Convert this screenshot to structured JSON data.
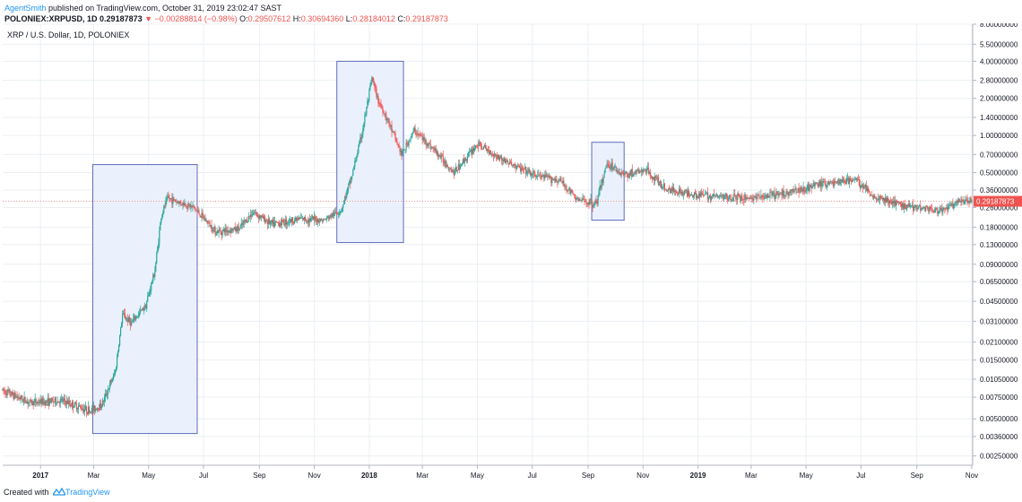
{
  "header": {
    "author": "AgentSmith",
    "published": " published on TradingView.com, October 31, 2019 23:02:47 SAST",
    "symbol": "POLONIEX:XRPUSD, 1D",
    "last": "0.29187873",
    "change": "▼ −0.00288814 (−0.98%)",
    "ohlc": {
      "o_label": "O:",
      "o": "0.29507612",
      "h_label": "H:",
      "h": "0.30694360",
      "l_label": "L:",
      "l": "0.28184012",
      "c_label": "C:",
      "c": "0.29187873"
    }
  },
  "symbol_title": "XRP / U.S. Dollar, 1D, POLONIEX",
  "footer": {
    "created": "Created with",
    "brand": "TradingView"
  },
  "colors": {
    "up": "#26a69a",
    "down": "#ef5350",
    "box_stroke": "#5c6bc0",
    "box_fill": "#e8eefb",
    "grid": "#eceff3"
  },
  "chart_data": {
    "type": "candlestick",
    "y_scale": "log",
    "ylim": [
      0.0021,
      8.0
    ],
    "xlim": [
      "2016-11-20",
      "2019-11-02"
    ],
    "last_price": 0.29187873,
    "y_ticks": [
      "8.00000000",
      "5.50000000",
      "4.00000000",
      "2.80000000",
      "2.00000000",
      "1.40000000",
      "1.00000000",
      "0.70000000",
      "0.50000000",
      "0.36000000",
      "0.26000000",
      "0.18000000",
      "0.13000000",
      "0.09000000",
      "0.06500000",
      "0.04500000",
      "0.03100000",
      "0.02100000",
      "0.01500000",
      "0.01050000",
      "0.00750000",
      "0.00500000",
      "0.00360000",
      "0.00250000"
    ],
    "x_ticks": [
      {
        "label": "2017",
        "date": "2017-01-01",
        "bold": true
      },
      {
        "label": "Mar",
        "date": "2017-03-01"
      },
      {
        "label": "May",
        "date": "2017-05-01"
      },
      {
        "label": "Jul",
        "date": "2017-07-01"
      },
      {
        "label": "Sep",
        "date": "2017-09-01"
      },
      {
        "label": "Nov",
        "date": "2017-11-01"
      },
      {
        "label": "2018",
        "date": "2018-01-01",
        "bold": true
      },
      {
        "label": "Mar",
        "date": "2018-03-01"
      },
      {
        "label": "May",
        "date": "2018-05-01"
      },
      {
        "label": "Jul",
        "date": "2018-07-01"
      },
      {
        "label": "Sep",
        "date": "2018-09-01"
      },
      {
        "label": "Nov",
        "date": "2018-11-01"
      },
      {
        "label": "2019",
        "date": "2019-01-01",
        "bold": true
      },
      {
        "label": "Mar",
        "date": "2019-03-01"
      },
      {
        "label": "May",
        "date": "2019-05-01"
      },
      {
        "label": "Jul",
        "date": "2019-07-01"
      },
      {
        "label": "Sep",
        "date": "2019-09-01"
      },
      {
        "label": "Nov",
        "date": "2019-11-01"
      }
    ],
    "price_path": [
      [
        "2016-11-20",
        0.0085
      ],
      [
        "2016-12-20",
        0.0068
      ],
      [
        "2017-01-25",
        0.007
      ],
      [
        "2017-02-25",
        0.0058
      ],
      [
        "2017-03-10",
        0.0065
      ],
      [
        "2017-03-25",
        0.012
      ],
      [
        "2017-04-02",
        0.035
      ],
      [
        "2017-04-12",
        0.03
      ],
      [
        "2017-04-28",
        0.042
      ],
      [
        "2017-05-08",
        0.08
      ],
      [
        "2017-05-15",
        0.22
      ],
      [
        "2017-05-22",
        0.31
      ],
      [
        "2017-06-02",
        0.29
      ],
      [
        "2017-06-20",
        0.26
      ],
      [
        "2017-07-15",
        0.165
      ],
      [
        "2017-08-10",
        0.175
      ],
      [
        "2017-08-25",
        0.24
      ],
      [
        "2017-09-15",
        0.19
      ],
      [
        "2017-10-15",
        0.21
      ],
      [
        "2017-11-12",
        0.205
      ],
      [
        "2017-12-01",
        0.25
      ],
      [
        "2017-12-12",
        0.45
      ],
      [
        "2017-12-24",
        1.05
      ],
      [
        "2018-01-04",
        2.9
      ],
      [
        "2018-01-10",
        2.0
      ],
      [
        "2018-01-22",
        1.3
      ],
      [
        "2018-02-06",
        0.7
      ],
      [
        "2018-02-20",
        1.1
      ],
      [
        "2018-03-15",
        0.75
      ],
      [
        "2018-04-05",
        0.5
      ],
      [
        "2018-05-01",
        0.85
      ],
      [
        "2018-06-01",
        0.62
      ],
      [
        "2018-07-01",
        0.48
      ],
      [
        "2018-08-01",
        0.43
      ],
      [
        "2018-08-20",
        0.3
      ],
      [
        "2018-09-10",
        0.28
      ],
      [
        "2018-09-22",
        0.6
      ],
      [
        "2018-10-10",
        0.48
      ],
      [
        "2018-11-05",
        0.52
      ],
      [
        "2018-11-25",
        0.37
      ],
      [
        "2018-12-20",
        0.34
      ],
      [
        "2019-01-20",
        0.32
      ],
      [
        "2019-03-01",
        0.31
      ],
      [
        "2019-04-01",
        0.33
      ],
      [
        "2019-05-15",
        0.4
      ],
      [
        "2019-06-25",
        0.44
      ],
      [
        "2019-07-15",
        0.32
      ],
      [
        "2019-08-15",
        0.27
      ],
      [
        "2019-09-10",
        0.26
      ],
      [
        "2019-09-25",
        0.24
      ],
      [
        "2019-10-20",
        0.29
      ],
      [
        "2019-11-01",
        0.2918
      ]
    ],
    "highlight_boxes": [
      {
        "start": "2017-02-28",
        "end": "2017-06-24",
        "top": 0.58,
        "bottom": 0.0038
      },
      {
        "start": "2017-11-26",
        "end": "2018-02-08",
        "top": 4.0,
        "bottom": 0.135
      },
      {
        "start": "2018-09-05",
        "end": "2018-10-11",
        "top": 0.88,
        "bottom": 0.205
      }
    ]
  }
}
